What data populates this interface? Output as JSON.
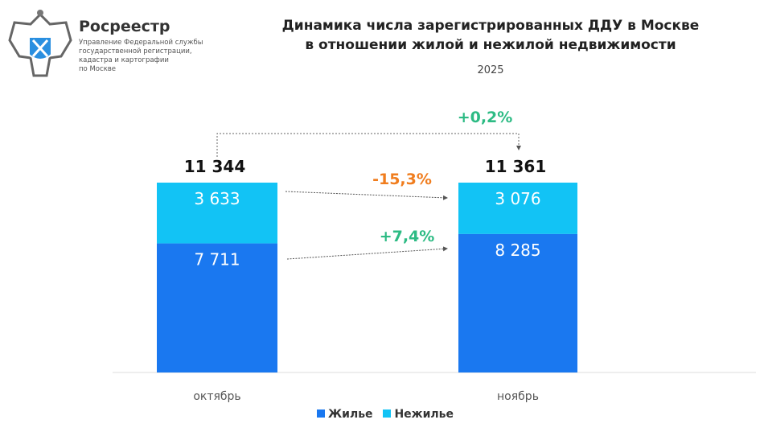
{
  "logo": {
    "name": "Росреестр",
    "subtitle": [
      "Управление Федеральной службы",
      "государственной регистрации,",
      "кадастра и картографии",
      "по Москве"
    ]
  },
  "chart_data": {
    "type": "bar",
    "stacked": true,
    "normalized": true,
    "title": "Динамика числа зарегистрированных ДДУ в Москве\nв отношении жилой и нежилой недвижимости",
    "subtitle": "2025",
    "categories": [
      "октябрь",
      "ноябрь"
    ],
    "totals": [
      "11 344",
      "11 361"
    ],
    "series": [
      {
        "name": "Жилье",
        "values": [
          7711,
          8285
        ],
        "labels": [
          "7 711",
          "8 285"
        ],
        "color": "#1a78f0"
      },
      {
        "name": "Нежилье",
        "values": [
          3633,
          3076
        ],
        "labels": [
          "3 633",
          "3 076"
        ],
        "color": "#12c3f5"
      }
    ],
    "annotations": {
      "total_change": "+0,2%",
      "nonresidential_change": "-15,3%",
      "residential_change": "+7,4%"
    },
    "colors": {
      "positive": "#2dbb84",
      "negative": "#f07d1e"
    },
    "legend": "bottom",
    "grid": false
  }
}
